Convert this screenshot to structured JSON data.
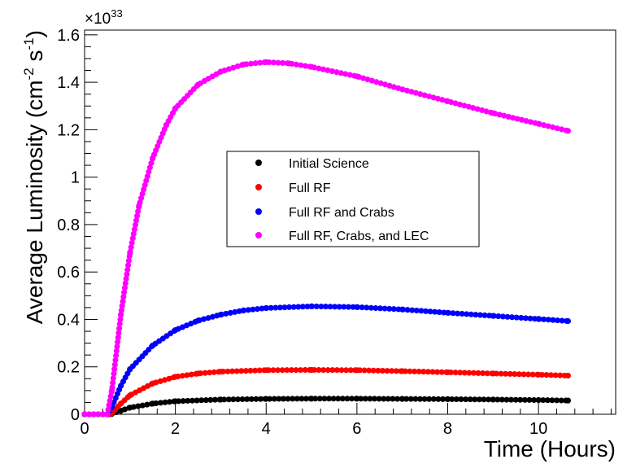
{
  "chart_data": {
    "type": "scatter",
    "xlabel": "Time (Hours)",
    "ylabel_parts": [
      "Average Luminosity (cm",
      "-2",
      " s",
      "-1",
      ")"
    ],
    "exponent_label": {
      "base": "×10",
      "power": "33"
    },
    "xlim": [
      0,
      11.7
    ],
    "ylim": [
      0,
      1.62
    ],
    "x_ticks": [
      0,
      2,
      4,
      6,
      8,
      10
    ],
    "x_tick_labels": [
      "0",
      "2",
      "4",
      "6",
      "8",
      "10"
    ],
    "y_ticks": [
      0,
      0.2,
      0.4,
      0.6,
      0.8,
      1.0,
      1.2,
      1.4,
      1.6
    ],
    "y_tick_labels": [
      "0",
      "0.2",
      "0.4",
      "0.6",
      "0.8",
      "1",
      "1.2",
      "1.4",
      "1.6"
    ],
    "grid": false,
    "legend_position": "center",
    "series": [
      {
        "name": "Initial Science",
        "color": "#000000",
        "x": [
          0,
          0.55,
          0.6,
          0.8,
          1.0,
          1.5,
          2.0,
          3.0,
          4.0,
          5.0,
          6.0,
          7.0,
          8.0,
          9.0,
          10.0,
          10.65
        ],
        "y": [
          0,
          0,
          0.002,
          0.015,
          0.028,
          0.045,
          0.055,
          0.062,
          0.065,
          0.066,
          0.066,
          0.065,
          0.064,
          0.062,
          0.06,
          0.058
        ]
      },
      {
        "name": "Full RF",
        "color": "#ff0000",
        "x": [
          0,
          0.55,
          0.6,
          0.8,
          1.0,
          1.5,
          2.0,
          2.5,
          3.0,
          4.0,
          5.0,
          6.0,
          7.0,
          8.0,
          9.0,
          10.0,
          10.65
        ],
        "y": [
          0,
          0,
          0.005,
          0.045,
          0.08,
          0.13,
          0.158,
          0.172,
          0.18,
          0.186,
          0.187,
          0.186,
          0.182,
          0.177,
          0.172,
          0.167,
          0.163
        ]
      },
      {
        "name": "Full RF and Crabs",
        "color": "#0000ff",
        "x": [
          0,
          0.5,
          0.6,
          0.8,
          1.0,
          1.5,
          2.0,
          2.5,
          3.0,
          3.5,
          4.0,
          5.0,
          6.0,
          7.0,
          8.0,
          9.0,
          10.0,
          10.65
        ],
        "y": [
          0,
          0,
          0.03,
          0.12,
          0.19,
          0.29,
          0.355,
          0.395,
          0.42,
          0.438,
          0.448,
          0.455,
          0.452,
          0.442,
          0.428,
          0.415,
          0.402,
          0.393
        ]
      },
      {
        "name": "Full RF, Crabs, and LEC",
        "color": "#ff00ff",
        "x": [
          0,
          0.5,
          0.6,
          0.8,
          1.0,
          1.2,
          1.5,
          1.8,
          2.0,
          2.5,
          3.0,
          3.5,
          4.0,
          4.5,
          5.0,
          6.0,
          7.0,
          8.0,
          9.0,
          10.0,
          10.65
        ],
        "y": [
          0,
          0,
          0.1,
          0.42,
          0.68,
          0.88,
          1.08,
          1.22,
          1.29,
          1.39,
          1.445,
          1.475,
          1.485,
          1.48,
          1.465,
          1.425,
          1.37,
          1.32,
          1.27,
          1.225,
          1.195
        ]
      }
    ]
  }
}
